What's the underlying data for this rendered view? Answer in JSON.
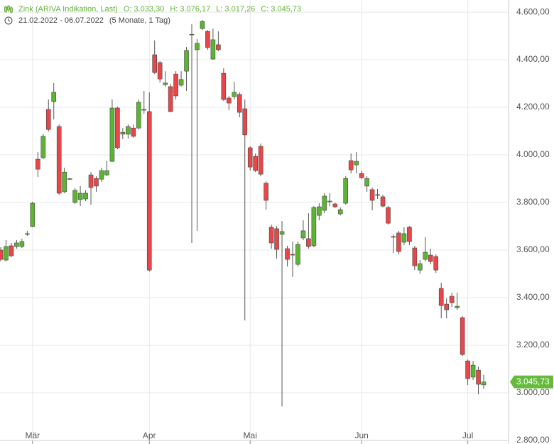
{
  "chart_data": {
    "type": "candlestick",
    "title": "Zink (ARIVA Indikation, Last)",
    "ohlc_summary": [
      "O: 3.033,30",
      "H: 3.076,17",
      "L: 3.017,26",
      "C: 3.045,73"
    ],
    "subtitle": "21.02.2022 - 06.07.2022",
    "period": "(5 Monate, 1 Tag)",
    "categories": [
      null,
      null,
      null,
      null,
      null,
      null,
      "Mär",
      null,
      null,
      null,
      null,
      null,
      null,
      null,
      null,
      null,
      null,
      null,
      null,
      null,
      null,
      null,
      null,
      null,
      null,
      null,
      null,
      null,
      "Apr",
      null,
      null,
      null,
      null,
      null,
      null,
      null,
      null,
      null,
      null,
      null,
      null,
      null,
      null,
      null,
      null,
      null,
      null,
      "Mai",
      null,
      null,
      null,
      null,
      null,
      null,
      null,
      null,
      null,
      null,
      null,
      null,
      null,
      null,
      null,
      null,
      null,
      null,
      null,
      null,
      "Jun",
      null,
      null,
      null,
      null,
      null,
      null,
      null,
      null,
      null,
      null,
      null,
      null,
      null,
      null,
      null,
      null,
      null,
      null,
      null,
      "Jul",
      null,
      null,
      null
    ],
    "open": [
      3600,
      3558,
      3618,
      3615,
      3615,
      3666,
      3699,
      3982,
      3988,
      4191,
      4224,
      4119,
      3845,
      3898,
      3800,
      3812,
      3815,
      3916,
      3901,
      3898,
      3916,
      3973,
      4197,
      4087,
      4087,
      4113,
      4113,
      4188,
      4182,
      4421,
      4388,
      4295,
      4287,
      4340,
      4293,
      4352,
      4504,
      4442,
      4531,
      4519,
      4403,
      4463,
      4343,
      4239,
      4245,
      4254,
      4194,
      4030,
      3994,
      4036,
      3881,
      3696,
      3690,
      3666,
      3606,
      3582,
      3540,
      3651,
      3648,
      3618,
      3746,
      3767,
      3803,
      3794,
      3752,
      3797,
      3976,
      3958,
      3922,
      3869,
      3854,
      3833,
      3824,
      3779,
      3657,
      3672,
      3633,
      3696,
      3609,
      3516,
      3561,
      3579,
      3573,
      3439,
      3373,
      3406,
      3358,
      3316,
      3134,
      3066,
      3095,
      3033.3
    ],
    "high": [
      3612,
      3642,
      3630,
      3642,
      3648,
      3681,
      3803,
      4012,
      4089,
      4233,
      4302,
      4128,
      3946,
      3904,
      3860,
      3869,
      3851,
      3928,
      3910,
      3946,
      3976,
      4233,
      4203,
      4113,
      4128,
      4128,
      4233,
      4269,
      4263,
      4481,
      4394,
      4352,
      4298,
      4352,
      4352,
      4454,
      4549,
      4487,
      4567,
      4525,
      4531,
      4519,
      4364,
      4248,
      4307,
      4263,
      4233,
      4036,
      4006,
      4048,
      3889,
      3707,
      3701,
      3722,
      3618,
      3636,
      3636,
      3725,
      3755,
      3785,
      3797,
      3839,
      3839,
      3800,
      3779,
      3910,
      4006,
      4012,
      3934,
      3910,
      3863,
      3857,
      3833,
      3785,
      3666,
      3681,
      3696,
      3701,
      3618,
      3558,
      3654,
      3606,
      3582,
      3463,
      3397,
      3421,
      3421,
      3322,
      3140,
      3134,
      3110,
      3076.17
    ],
    "low": [
      3552,
      3552,
      3570,
      3606,
      3609,
      3660,
      3696,
      3907,
      3982,
      4098,
      4149,
      3833,
      3839,
      3895,
      3794,
      3785,
      3806,
      3791,
      3845,
      3887,
      3910,
      3970,
      4024,
      4066,
      4069,
      4072,
      4107,
      4173,
      3510,
      4340,
      4304,
      4287,
      4179,
      4233,
      4287,
      4269,
      3630,
      3681,
      4525,
      4442,
      4400,
      4436,
      4227,
      4188,
      4233,
      4158,
      3304,
      3934,
      3928,
      3910,
      3770,
      3606,
      3564,
      2943,
      3531,
      3487,
      3531,
      3642,
      3606,
      3612,
      3725,
      3755,
      3785,
      3776,
      3746,
      3791,
      3922,
      3922,
      3898,
      3845,
      3767,
      3815,
      3779,
      3707,
      3588,
      3582,
      3621,
      3621,
      3516,
      3501,
      3552,
      3540,
      3504,
      3313,
      3313,
      3361,
      3349,
      3155,
      3033,
      3054,
      2994,
      3017.26
    ],
    "close": [
      3561,
      3615,
      3576,
      3630,
      3636,
      3669,
      3797,
      3940,
      4078,
      4107,
      4263,
      3839,
      3928,
      3900,
      3851,
      3839,
      3839,
      3863,
      3869,
      3934,
      3934,
      4197,
      4030,
      4095,
      4119,
      4078,
      4221,
      4191,
      3516,
      4346,
      4319,
      4302,
      4182,
      4248,
      4317,
      4439,
      4507,
      4469,
      4561,
      4451,
      4484,
      4442,
      4233,
      4218,
      4263,
      4179,
      4084,
      3949,
      3934,
      3919,
      3809,
      3630,
      3603,
      3678,
      3561,
      3579,
      3624,
      3681,
      3615,
      3779,
      3782,
      3827,
      3806,
      3782,
      3770,
      3901,
      3937,
      3973,
      3904,
      3901,
      3809,
      3830,
      3785,
      3713,
      3654,
      3594,
      3669,
      3636,
      3534,
      3543,
      3591,
      3552,
      3516,
      3367,
      3349,
      3379,
      3364,
      3161,
      3060,
      3116,
      3036,
      3045.73
    ],
    "up_color": "#5cb531",
    "down_color": "#e8474a",
    "ylim": [
      2785,
      4651
    ],
    "yticks": [
      {
        "value": 2800,
        "label": "2.800,00"
      },
      {
        "value": 3000,
        "label": "3.000,00"
      },
      {
        "value": 3200,
        "label": "3.200,00"
      },
      {
        "value": 3400,
        "label": "3.400,00"
      },
      {
        "value": 3600,
        "label": "3.600,00"
      },
      {
        "value": 3800,
        "label": "3.800,00"
      },
      {
        "value": 4000,
        "label": "4.000,00"
      },
      {
        "value": 4200,
        "label": "4.200,00"
      },
      {
        "value": 4400,
        "label": "4.400,00"
      },
      {
        "value": 4600,
        "label": "4.600,00"
      }
    ],
    "last_price": {
      "value": 3045.73,
      "label": "3.045,73"
    },
    "grid": true
  }
}
